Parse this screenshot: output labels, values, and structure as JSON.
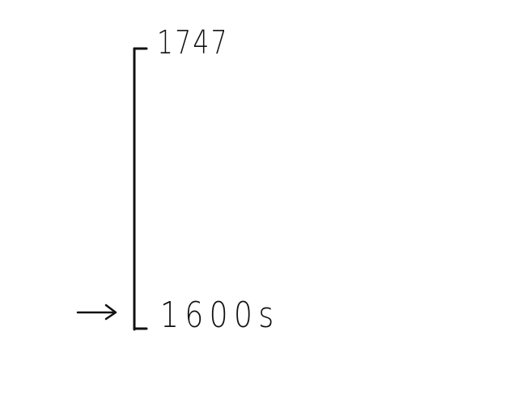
{
  "timeline": {
    "top_label": "1747",
    "bottom_label": "1600s"
  },
  "colors": {
    "ink": "#111111",
    "background": "#ffffff"
  },
  "icons": {
    "pointer": "right-arrow-icon"
  }
}
